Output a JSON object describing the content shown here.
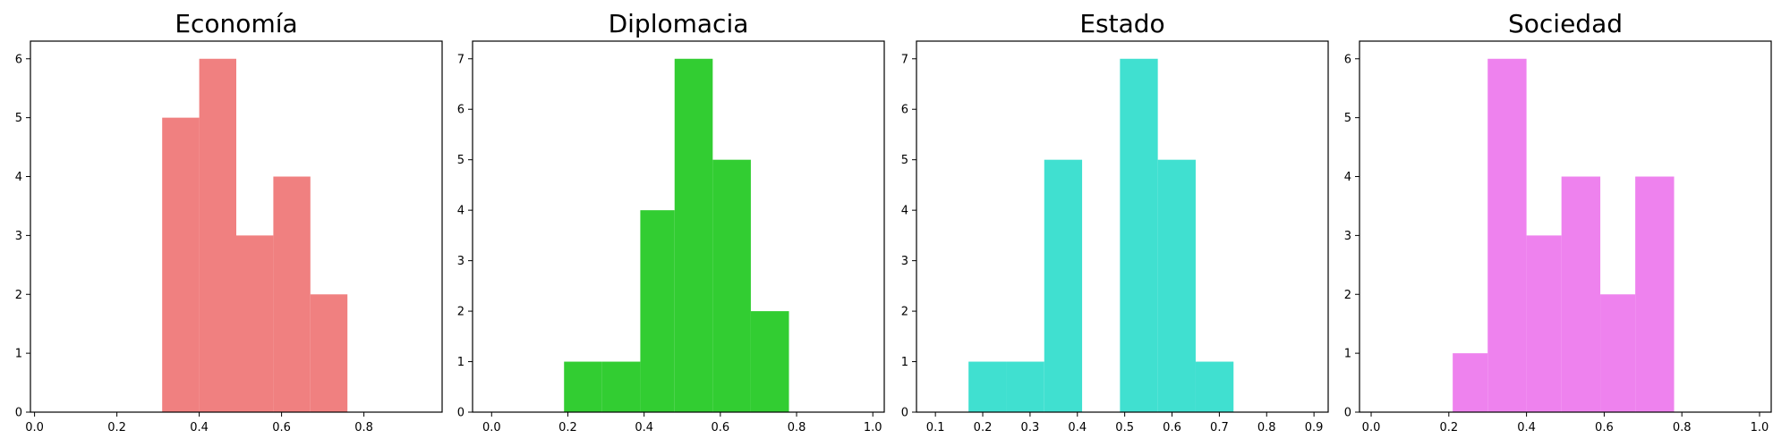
{
  "chart_data": [
    {
      "type": "bar",
      "title": "Economía",
      "color": "#f08080",
      "xlim": [
        -0.01,
        0.99
      ],
      "ylim": [
        0,
        6.3
      ],
      "xticks": [
        0.0,
        0.2,
        0.4,
        0.6,
        0.8
      ],
      "xtick_labels": [
        "0.0",
        "0.2",
        "0.4",
        "0.6",
        "0.8"
      ],
      "yticks": [
        0,
        1,
        2,
        3,
        4,
        5,
        6
      ],
      "ytick_labels": [
        "0",
        "1",
        "2",
        "3",
        "4",
        "5",
        "6"
      ],
      "bins": [
        {
          "x0": 0.31,
          "x1": 0.4,
          "count": 5
        },
        {
          "x0": 0.4,
          "x1": 0.49,
          "count": 6
        },
        {
          "x0": 0.49,
          "x1": 0.58,
          "count": 3
        },
        {
          "x0": 0.58,
          "x1": 0.67,
          "count": 4
        },
        {
          "x0": 0.67,
          "x1": 0.76,
          "count": 2
        }
      ]
    },
    {
      "type": "bar",
      "title": "Diplomacia",
      "color": "#32cd32",
      "xlim": [
        -0.05,
        1.03
      ],
      "ylim": [
        0,
        7.35
      ],
      "xticks": [
        0.0,
        0.2,
        0.4,
        0.6,
        0.8,
        1.0
      ],
      "xtick_labels": [
        "0.0",
        "0.2",
        "0.4",
        "0.6",
        "0.8",
        "1.0"
      ],
      "yticks": [
        0,
        1,
        2,
        3,
        4,
        5,
        6,
        7
      ],
      "ytick_labels": [
        "0",
        "1",
        "2",
        "3",
        "4",
        "5",
        "6",
        "7"
      ],
      "bins": [
        {
          "x0": 0.19,
          "x1": 0.29,
          "count": 1
        },
        {
          "x0": 0.29,
          "x1": 0.39,
          "count": 1
        },
        {
          "x0": 0.39,
          "x1": 0.48,
          "count": 4
        },
        {
          "x0": 0.48,
          "x1": 0.58,
          "count": 7
        },
        {
          "x0": 0.58,
          "x1": 0.68,
          "count": 5
        },
        {
          "x0": 0.68,
          "x1": 0.78,
          "count": 2
        }
      ]
    },
    {
      "type": "bar",
      "title": "Estado",
      "color": "#40e0d0",
      "xlim": [
        0.06,
        0.93
      ],
      "ylim": [
        0,
        7.35
      ],
      "xticks": [
        0.1,
        0.2,
        0.3,
        0.4,
        0.5,
        0.6,
        0.7,
        0.8,
        0.9
      ],
      "xtick_labels": [
        "0.1",
        "0.2",
        "0.3",
        "0.4",
        "0.5",
        "0.6",
        "0.7",
        "0.8",
        "0.9"
      ],
      "yticks": [
        0,
        1,
        2,
        3,
        4,
        5,
        6,
        7
      ],
      "ytick_labels": [
        "0",
        "1",
        "2",
        "3",
        "4",
        "5",
        "6",
        "7"
      ],
      "bins": [
        {
          "x0": 0.17,
          "x1": 0.25,
          "count": 1
        },
        {
          "x0": 0.25,
          "x1": 0.33,
          "count": 1
        },
        {
          "x0": 0.33,
          "x1": 0.41,
          "count": 5
        },
        {
          "x0": 0.41,
          "x1": 0.49,
          "count": 0
        },
        {
          "x0": 0.49,
          "x1": 0.57,
          "count": 7
        },
        {
          "x0": 0.57,
          "x1": 0.65,
          "count": 5
        },
        {
          "x0": 0.65,
          "x1": 0.73,
          "count": 1
        }
      ]
    },
    {
      "type": "bar",
      "title": "Sociedad",
      "color": "#ee82ee",
      "xlim": [
        -0.03,
        1.03
      ],
      "ylim": [
        0,
        6.3
      ],
      "xticks": [
        0.0,
        0.2,
        0.4,
        0.6,
        0.8,
        1.0
      ],
      "xtick_labels": [
        "0.0",
        "0.2",
        "0.4",
        "0.6",
        "0.8",
        "1.0"
      ],
      "yticks": [
        0,
        1,
        2,
        3,
        4,
        5,
        6
      ],
      "ytick_labels": [
        "0",
        "1",
        "2",
        "3",
        "4",
        "5",
        "6"
      ],
      "bins": [
        {
          "x0": 0.21,
          "x1": 0.3,
          "count": 1
        },
        {
          "x0": 0.3,
          "x1": 0.4,
          "count": 6
        },
        {
          "x0": 0.4,
          "x1": 0.49,
          "count": 3
        },
        {
          "x0": 0.49,
          "x1": 0.59,
          "count": 4
        },
        {
          "x0": 0.59,
          "x1": 0.68,
          "count": 2
        },
        {
          "x0": 0.68,
          "x1": 0.78,
          "count": 4
        }
      ]
    }
  ]
}
